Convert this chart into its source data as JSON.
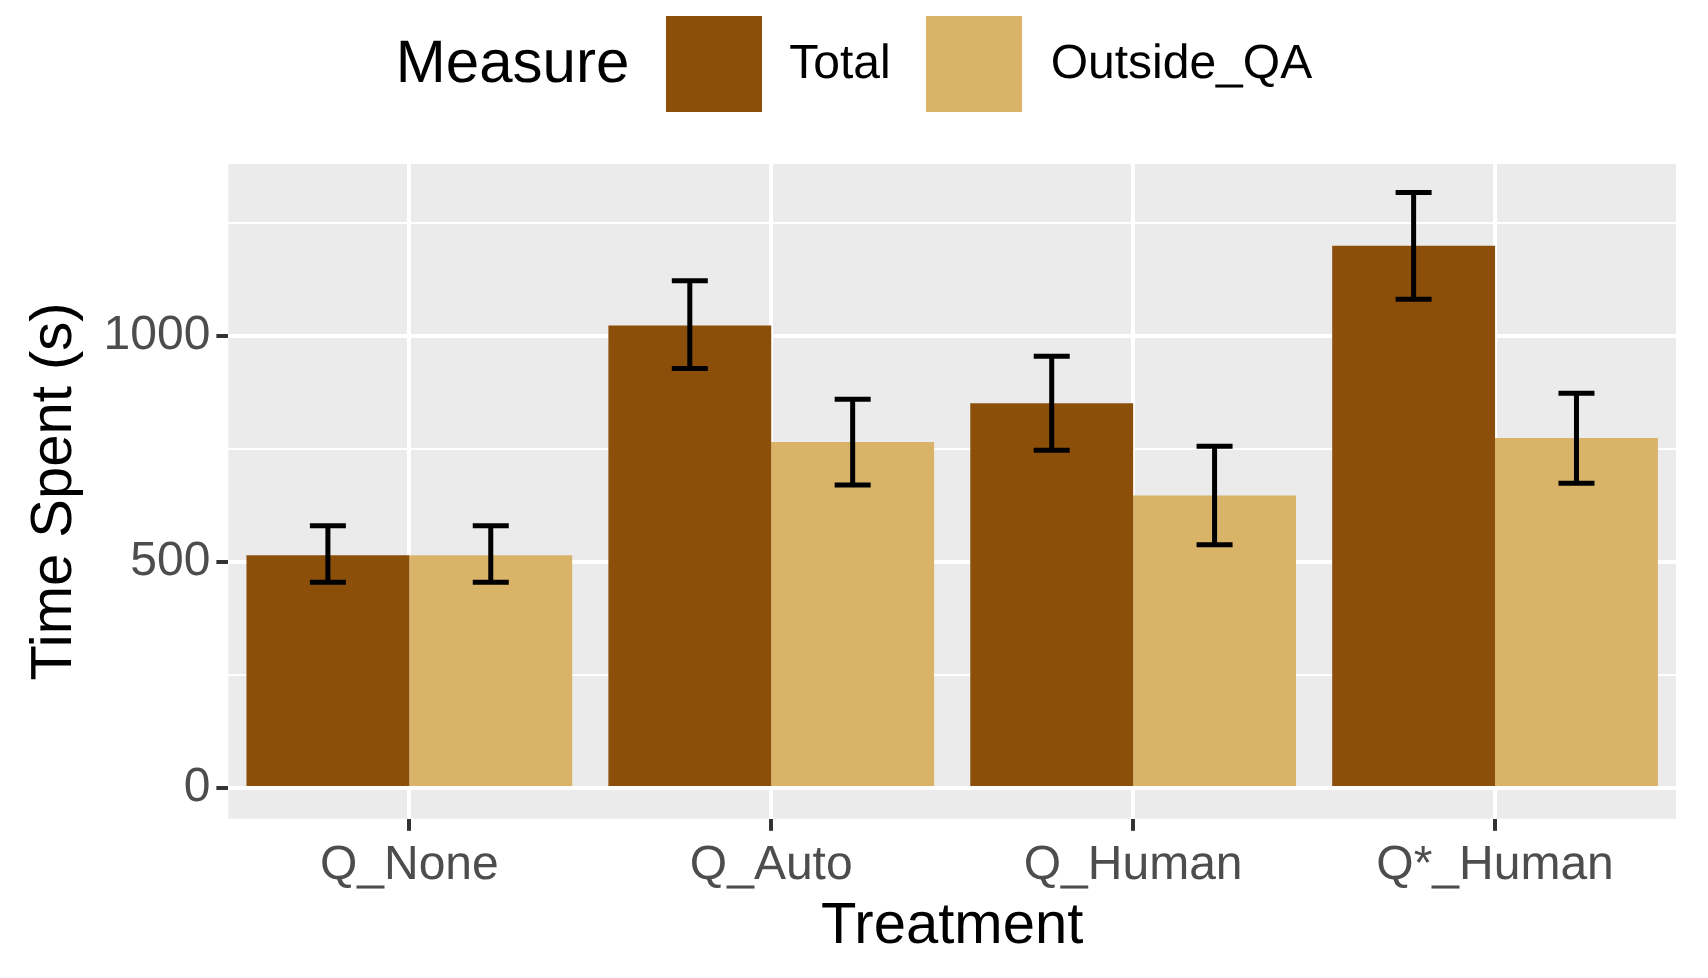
{
  "chart_data": {
    "type": "bar",
    "xlabel": "Treatment",
    "ylabel": "Time Spent (s)",
    "legend_title": "Measure",
    "legend": "top",
    "categories": [
      "Q_None",
      "Q_Auto",
      "Q_Human",
      "Q*_Human"
    ],
    "series": [
      {
        "name": "Total",
        "color": "#8b4f0a",
        "values": [
          515,
          1023,
          851,
          1199
        ],
        "errors": [
          [
            455,
            580
          ],
          [
            928,
            1122
          ],
          [
            747,
            955
          ],
          [
            1081,
            1317
          ]
        ]
      },
      {
        "name": "Outside_QA",
        "color": "#d8b368",
        "values": [
          515,
          765,
          647,
          774
        ],
        "errors": [
          [
            455,
            580
          ],
          [
            670,
            860
          ],
          [
            538,
            756
          ],
          [
            674,
            873
          ]
        ]
      }
    ],
    "ylim": [
      -68,
      1380
    ],
    "yticks": [
      0,
      {
        "value": 250,
        "label": null
      },
      500,
      {
        "value": 750,
        "label": null
      },
      1000,
      {
        "value": 1250,
        "label": null
      }
    ],
    "grid": true
  }
}
